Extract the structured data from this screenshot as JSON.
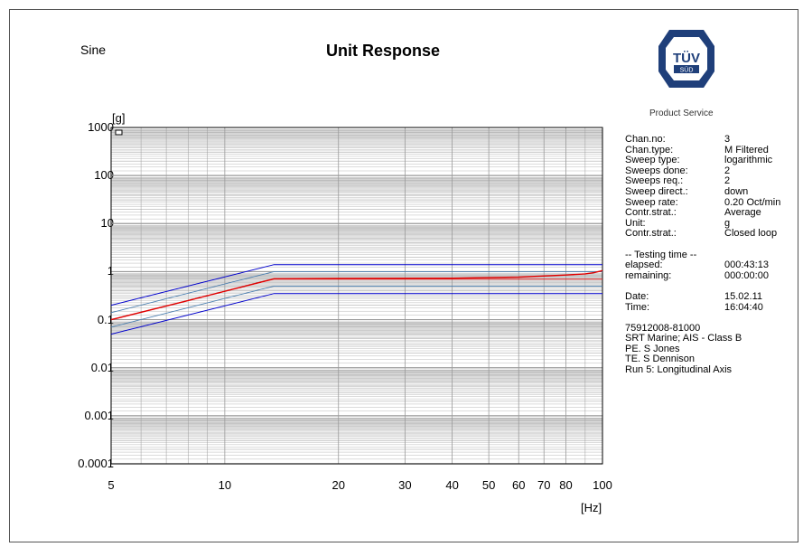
{
  "header": {
    "left_label": "Sine",
    "title": "Unit  Response",
    "logo_text": "TÜV",
    "logo_subtext": "SÜD",
    "logo_caption": "Product Service"
  },
  "info": {
    "items": [
      {
        "label": "Chan.no:",
        "value": "3"
      },
      {
        "label": "Chan.type:",
        "value": "M Filtered"
      },
      {
        "label": "Sweep type:",
        "value": "logarithmic"
      },
      {
        "label": "Sweeps done:",
        "value": "2"
      },
      {
        "label": "Sweeps req.:",
        "value": "2"
      },
      {
        "label": "Sweep direct.:",
        "value": "down"
      },
      {
        "label": "Sweep rate:",
        "value": "0.20 Oct/min"
      },
      {
        "label": "Contr.strat.:",
        "value": "Average"
      },
      {
        "label": "Unit:",
        "value": "g"
      },
      {
        "label": "Contr.strat.:",
        "value": "Closed loop"
      }
    ],
    "testing_header": "-- Testing time --",
    "testing": [
      {
        "label": "elapsed:",
        "value": "000:43:13"
      },
      {
        "label": "remaining:",
        "value": "000:00:00"
      }
    ],
    "datetime": [
      {
        "label": "Date:",
        "value": "15.02.11"
      },
      {
        "label": "Time:",
        "value": "16:04:40"
      }
    ],
    "notes": [
      "75912008-81000",
      "SRT Marine;  AIS - Class B",
      "PE. S Jones",
      "TE. S Dennison",
      "Run 5: Longitudinal Axis"
    ]
  },
  "colors": {
    "response": "#e00000",
    "abort_limits": "#0000cc",
    "alarm_limits": "#4a7fb0",
    "reference": "#dd2222",
    "grid": "#999999",
    "logo": "#1f3f7a"
  },
  "chart_data": {
    "type": "line",
    "title": "Unit  Response",
    "xlabel": "[Hz]",
    "ylabel": "[g]",
    "xscale": "log",
    "yscale": "log",
    "xlim": [
      5,
      100
    ],
    "ylim": [
      0.0001,
      1000
    ],
    "x_ticks": [
      5,
      10,
      20,
      30,
      40,
      50,
      60,
      70,
      80,
      100
    ],
    "y_ticks": [
      {
        "value": 0.0001,
        "label": "0.0001"
      },
      {
        "value": 0.001,
        "label": "0.001"
      },
      {
        "value": 0.01,
        "label": "0.01"
      },
      {
        "value": 0.1,
        "label": "0.1"
      },
      {
        "value": 1,
        "label": "1"
      },
      {
        "value": 10,
        "label": "10"
      },
      {
        "value": 100,
        "label": "100"
      },
      {
        "value": 1000,
        "label": "1000"
      }
    ],
    "grid": true,
    "legend": "top-left",
    "series": [
      {
        "role": "abort_upper",
        "x": [
          5,
          13.5,
          100
        ],
        "y": [
          0.2,
          1.4,
          1.4
        ]
      },
      {
        "role": "abort_lower",
        "x": [
          5,
          13.5,
          100
        ],
        "y": [
          0.05,
          0.35,
          0.35
        ]
      },
      {
        "role": "alarm_upper",
        "x": [
          5,
          13.5,
          100
        ],
        "y": [
          0.14,
          1.0,
          1.0
        ]
      },
      {
        "role": "alarm_lower",
        "x": [
          5,
          13.5,
          100
        ],
        "y": [
          0.07,
          0.5,
          0.5
        ]
      },
      {
        "role": "reference",
        "x": [
          5,
          13.5,
          100
        ],
        "y": [
          0.1,
          0.7,
          0.7
        ]
      },
      {
        "role": "response",
        "x": [
          5,
          8,
          13.5,
          20,
          40,
          60,
          80,
          90,
          95,
          100
        ],
        "y": [
          0.1,
          0.25,
          0.71,
          0.72,
          0.73,
          0.77,
          0.85,
          0.9,
          0.95,
          1.05
        ]
      }
    ]
  }
}
